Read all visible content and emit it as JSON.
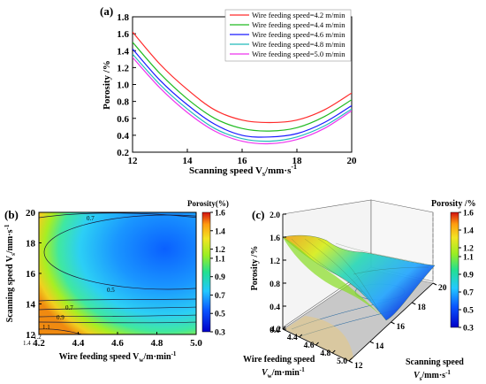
{
  "panels": {
    "a": {
      "label": "(a)"
    },
    "b": {
      "label": "(b)"
    },
    "c": {
      "label": "(c)"
    }
  },
  "chart_data": [
    {
      "type": "line",
      "panel": "(a)",
      "xlabel_main": "Scanning speed V",
      "xlabel_sub": "s",
      "xlabel_unit": "/mm·s",
      "xlabel_sup": "-1",
      "ylabel": "Porosity /%",
      "xlim": [
        12,
        20
      ],
      "ylim": [
        0.2,
        1.8
      ],
      "xticks": [
        12,
        14,
        16,
        18,
        20
      ],
      "yticks": [
        0.2,
        0.4,
        0.6,
        0.8,
        1.0,
        1.2,
        1.4,
        1.6,
        1.8
      ],
      "ytick_labels": [
        "0.2",
        "0.4",
        "0.6",
        "0.8",
        "1.0",
        "1.2",
        "1.4",
        "1.6",
        "1.8"
      ],
      "grid": false,
      "legend_position": "top-right",
      "x": [
        12,
        13,
        14,
        15,
        16,
        17,
        18,
        19,
        20
      ],
      "series": [
        {
          "name": "Wire feeding speed=4.2 m/min",
          "color": "#ff2a2a",
          "values": [
            1.62,
            1.24,
            0.94,
            0.7,
            0.58,
            0.55,
            0.58,
            0.7,
            0.9
          ]
        },
        {
          "name": "Wire feeding speed=4.4 m/min",
          "color": "#22bb22",
          "values": [
            1.5,
            1.13,
            0.83,
            0.6,
            0.48,
            0.45,
            0.49,
            0.62,
            0.82
          ]
        },
        {
          "name": "Wire feeding speed=4.6 m/min",
          "color": "#1a1aff",
          "values": [
            1.42,
            1.05,
            0.76,
            0.53,
            0.4,
            0.38,
            0.42,
            0.55,
            0.75
          ]
        },
        {
          "name": "Wire feeding speed=4.8 m/min",
          "color": "#22bbbb",
          "values": [
            1.36,
            1.0,
            0.71,
            0.48,
            0.36,
            0.33,
            0.38,
            0.51,
            0.71
          ]
        },
        {
          "name": "Wire feeding speed=5.0 m/min",
          "color": "#ee33ee",
          "values": [
            1.32,
            0.96,
            0.67,
            0.45,
            0.33,
            0.3,
            0.35,
            0.48,
            0.69
          ]
        }
      ]
    },
    {
      "type": "heatmap",
      "panel": "(b)",
      "xlabel_main": "Wire feeding speed V",
      "xlabel_sub": "w",
      "xlabel_unit": "/m·min",
      "xlabel_sup": "-1",
      "ylabel_main": "Scanning speed V",
      "ylabel_sub": "s",
      "ylabel_unit": "/mm·s",
      "ylabel_sup": "-1",
      "xlim": [
        4.2,
        5.0
      ],
      "ylim": [
        12,
        20
      ],
      "xticks": [
        "4.2",
        "4.4",
        "4.6",
        "4.8",
        "5.0"
      ],
      "yticks": [
        "12",
        "14",
        "16",
        "18",
        "20"
      ],
      "contour_labels": [
        "0.7",
        "0.5",
        "0.7",
        "0.9",
        "1.1",
        "1.2",
        "1.4"
      ],
      "colorbar_title": "Porosity(%)",
      "colorbar_range": [
        0.3,
        1.6
      ],
      "colorbar_ticks": [
        "0.3",
        "0.5",
        "0.7",
        "0.9",
        "1.1",
        "1.2",
        "1.4",
        "1.6"
      ]
    },
    {
      "type": "surface",
      "panel": "(c)",
      "zlabel": "Porosity /%",
      "zlim": [
        0.0,
        2.0
      ],
      "zticks": [
        "0.0",
        "0.4",
        "0.8",
        "1.2",
        "1.6",
        "2.0"
      ],
      "xlabel_line1": "Wire feeding speed",
      "xlabel_main": "V",
      "xlabel_sub": "w",
      "xlabel_unit": "/m·min",
      "xlabel_sup": "-1",
      "xticks": [
        "4.2",
        "4.4",
        "4.6",
        "4.8",
        "5.0"
      ],
      "ylabel_line1": "Scanning speed",
      "ylabel_main": "V",
      "ylabel_sub": "s",
      "ylabel_unit": "/mm·s",
      "ylabel_sup": "-1",
      "yticks": [
        "12",
        "14",
        "16",
        "18",
        "20"
      ],
      "colorbar_title": "Porosity /%",
      "colorbar_range": [
        0.3,
        1.6
      ],
      "colorbar_ticks": [
        "0.3",
        "0.5",
        "0.7",
        "0.9",
        "1.1",
        "1.2",
        "1.4",
        "1.6"
      ]
    }
  ]
}
